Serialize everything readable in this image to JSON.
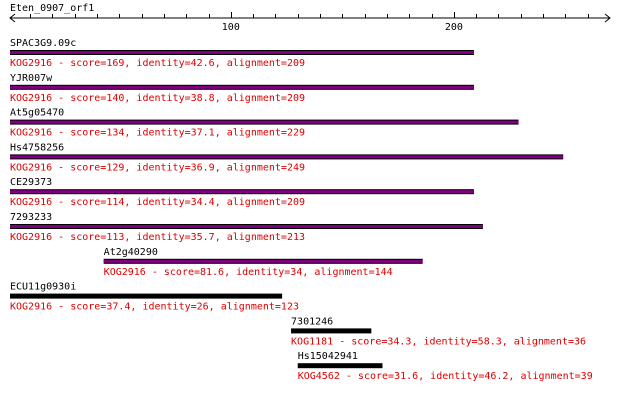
{
  "query": {
    "name": "Eten_0907_orf1"
  },
  "axis": {
    "min": 1,
    "max": 270,
    "major_ticks": [
      100,
      200
    ],
    "minor_step": 10,
    "major_labels": [
      "100",
      "200"
    ]
  },
  "colors": {
    "purple_bar": "#800080",
    "black_bar": "#000000",
    "stat_text": "#dd0000",
    "name_text": "#000000"
  },
  "hits": [
    {
      "name": "SPAC3G9.09c",
      "start": 1,
      "end": 209,
      "color": "purple",
      "stats": "KOG2916 - score=169, identity=42.6, alignment=209"
    },
    {
      "name": "YJR007w",
      "start": 1,
      "end": 209,
      "color": "purple",
      "stats": "KOG2916 - score=140, identity=38.8, alignment=209"
    },
    {
      "name": "At5g05470",
      "start": 1,
      "end": 229,
      "color": "purple",
      "stats": "KOG2916 - score=134, identity=37.1, alignment=229"
    },
    {
      "name": "Hs4758256",
      "start": 1,
      "end": 249,
      "color": "purple",
      "stats": "KOG2916 - score=129, identity=36.9, alignment=249"
    },
    {
      "name": "CE29373",
      "start": 1,
      "end": 209,
      "color": "purple",
      "stats": "KOG2916 - score=114, identity=34.4, alignment=209"
    },
    {
      "name": "7293233",
      "start": 1,
      "end": 213,
      "color": "purple",
      "stats": "KOG2916 - score=113, identity=35.7, alignment=213"
    },
    {
      "name": "At2g40290",
      "start": 43,
      "end": 186,
      "color": "purple",
      "stats": "KOG2916 - score=81.6, identity=34, alignment=144"
    },
    {
      "name": "ECU11g0930i",
      "start": 1,
      "end": 123,
      "color": "black",
      "stats": "KOG2916 - score=37.4, identity=26, alignment=123"
    },
    {
      "name": "7301246",
      "start": 127,
      "end": 163,
      "color": "black",
      "stats": "KOG1181 - score=34.3, identity=58.3, alignment=36"
    },
    {
      "name": "Hs15042941",
      "start": 130,
      "end": 168,
      "color": "black",
      "stats": "KOG4562 - score=31.6, identity=46.2, alignment=39"
    }
  ]
}
